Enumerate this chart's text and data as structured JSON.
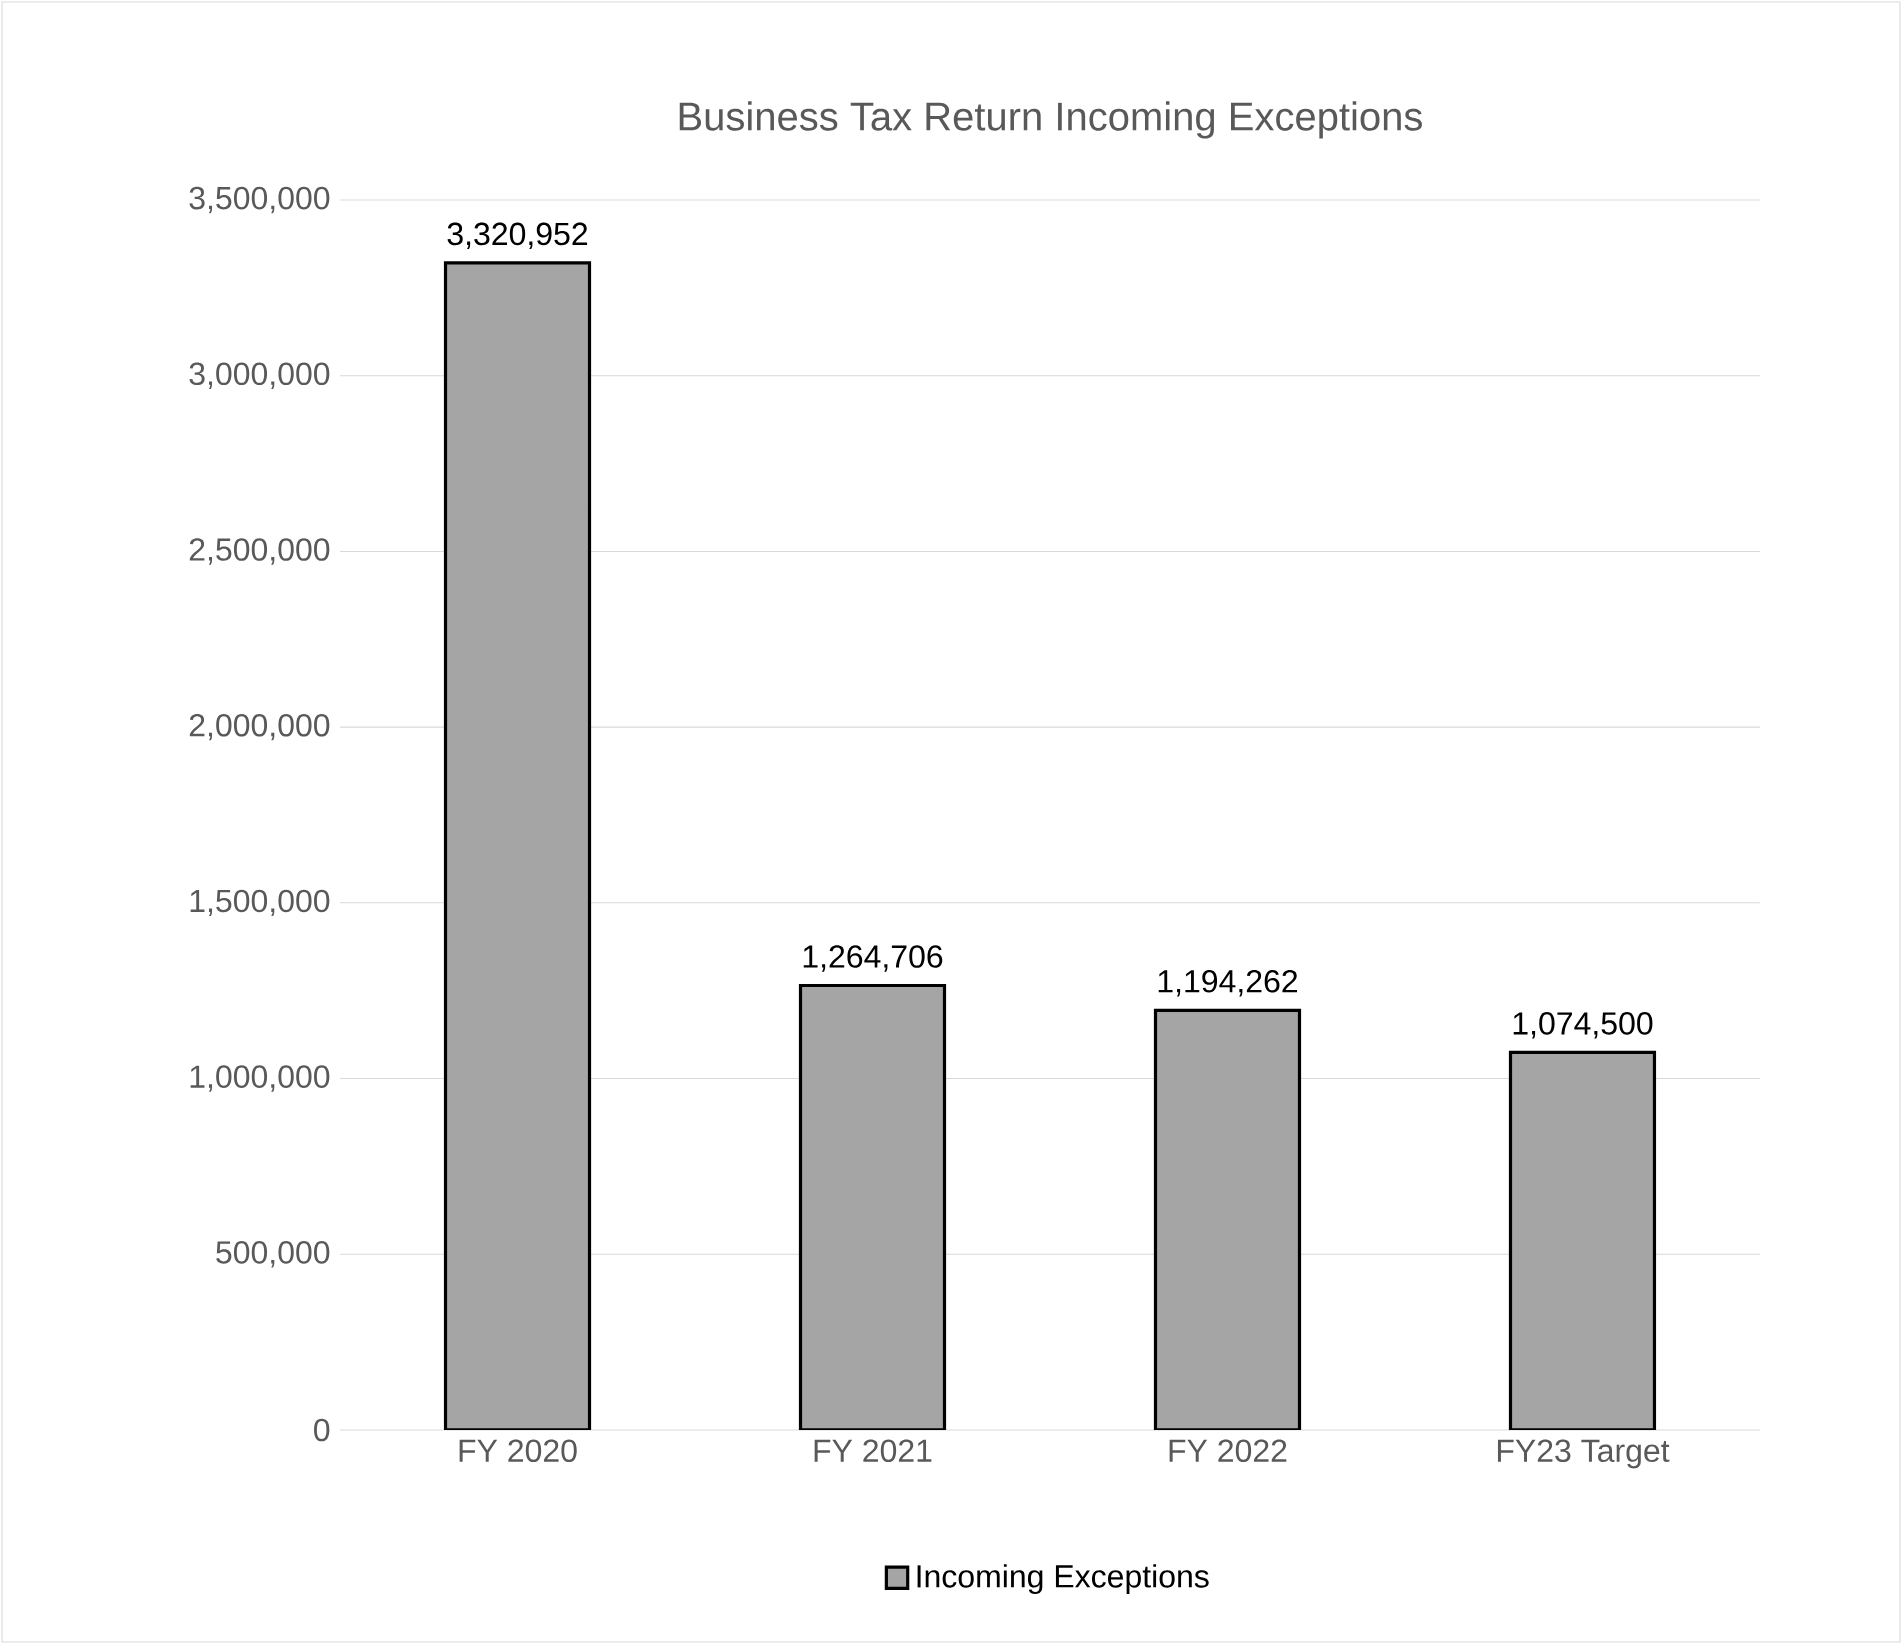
{
  "chart_data": {
    "type": "bar",
    "title": "Business Tax Return Incoming Exceptions",
    "categories": [
      "FY 2020",
      "FY 2021",
      "FY 2022",
      "FY23 Target"
    ],
    "series": [
      {
        "name": "Incoming Exceptions",
        "color": "#a5a5a5",
        "values": [
          3320952,
          1264706,
          1194262,
          1074500
        ],
        "value_labels": [
          "3,320,952",
          "1,264,706",
          "1,194,262",
          "1,074,500"
        ]
      }
    ],
    "ylim": [
      0,
      3500000
    ],
    "yticks": [
      0,
      {
        "value": 500000,
        "label": "500,000"
      },
      {
        "value": 1000000,
        "label": "1,000,000"
      },
      {
        "value": 1500000,
        "label": "1,500,000"
      },
      {
        "value": 2000000,
        "label": "2,000,000"
      },
      {
        "value": 2500000,
        "label": "2,500,000"
      },
      {
        "value": 3000000,
        "label": "3,000,000"
      },
      {
        "value": 3500000,
        "label": "3,500,000"
      }
    ],
    "grid": "y",
    "legend": "bottom"
  }
}
